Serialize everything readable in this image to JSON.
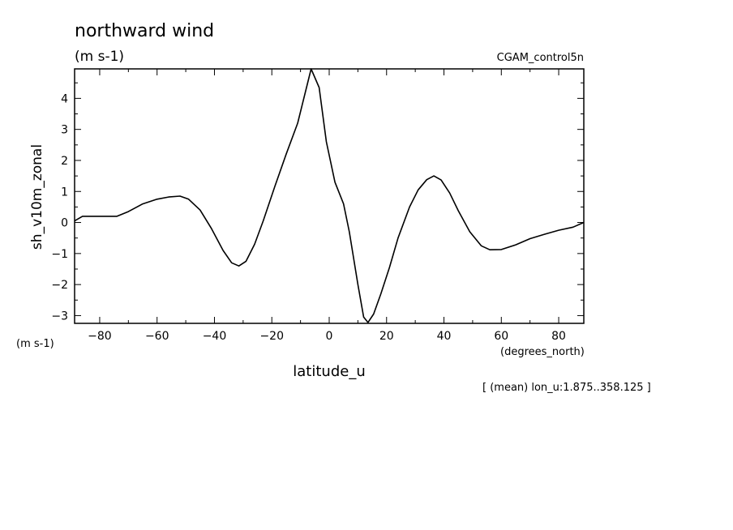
{
  "chart_data": {
    "type": "line",
    "title": "northward wind",
    "units": "(m s-1)",
    "dataset": "CGAM_control5n",
    "ylabel": "sh_v10m_zonal",
    "y_units": "(m s-1)",
    "xlabel": "latitude_u",
    "x_units": "(degrees_north)",
    "footnote": "[ (mean) lon_u:1.875..358.125 ]",
    "xlim": [
      -88.75,
      88.75
    ],
    "ylim": [
      -3.25,
      4.95
    ],
    "x_ticks": [
      -80,
      -60,
      -40,
      -20,
      0,
      20,
      40,
      60,
      80
    ],
    "x_tick_labels": [
      "−80",
      "−60",
      "−40",
      "−20",
      "0",
      "20",
      "40",
      "60",
      "80"
    ],
    "y_ticks": [
      -3,
      -2,
      -1,
      0,
      1,
      2,
      3,
      4
    ],
    "y_tick_labels": [
      "−3",
      "−2",
      "−1",
      "0",
      "1",
      "2",
      "3",
      "4"
    ],
    "grid": false,
    "series": [
      {
        "x": [
          -88.75,
          -86,
          -83,
          -80,
          -77,
          -74,
          -70,
          -65,
          -60,
          -56,
          -52,
          -49,
          -45,
          -41,
          -37,
          -34,
          -31.5,
          -29,
          -26,
          -23,
          -19,
          -15,
          -11,
          -6.3,
          -3.5,
          -1,
          2,
          5,
          7,
          10,
          12,
          13.5,
          15.5,
          18,
          21,
          24,
          28,
          31,
          34,
          36.5,
          39,
          42,
          45,
          49,
          53,
          56,
          60,
          65,
          70,
          75,
          80,
          85,
          88.75
        ],
        "y": [
          0.05,
          0.2,
          0.2,
          0.2,
          0.2,
          0.2,
          0.35,
          0.6,
          0.75,
          0.82,
          0.85,
          0.75,
          0.4,
          -0.2,
          -0.9,
          -1.3,
          -1.4,
          -1.25,
          -0.7,
          0.05,
          1.15,
          2.2,
          3.2,
          4.95,
          4.35,
          2.6,
          1.3,
          0.6,
          -0.3,
          -2.0,
          -3.05,
          -3.22,
          -2.95,
          -2.3,
          -1.45,
          -0.5,
          0.5,
          1.05,
          1.38,
          1.5,
          1.37,
          0.95,
          0.38,
          -0.3,
          -0.75,
          -0.88,
          -0.87,
          -0.72,
          -0.52,
          -0.38,
          -0.25,
          -0.15,
          0.0
        ]
      }
    ]
  }
}
